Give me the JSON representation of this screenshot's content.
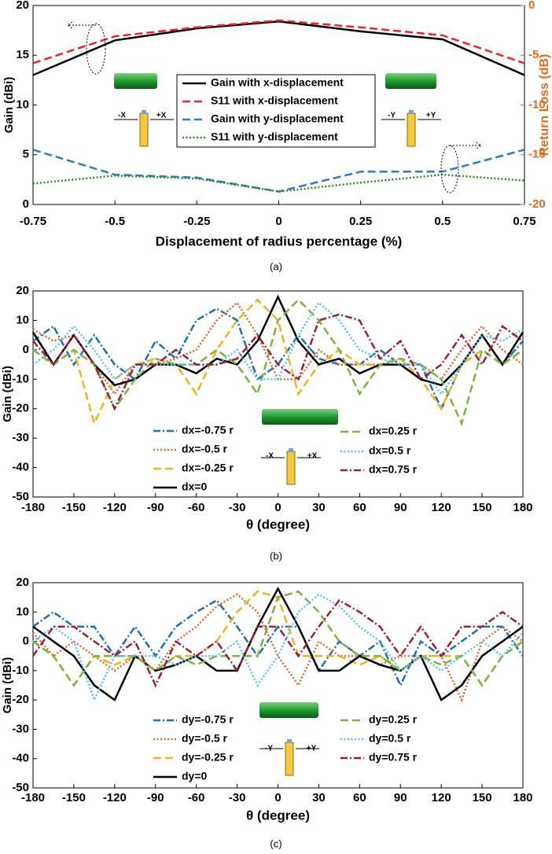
{
  "chart_data": [
    {
      "type": "line",
      "caption": "(a)",
      "x_label": "Displacement of radius percentage (%)",
      "y_label": "Gain (dBi)",
      "y2_label": "Return Loss (dB)",
      "y2_color": "#e06a1b",
      "x": [
        -0.75,
        -0.5,
        -0.25,
        0,
        0.25,
        0.5,
        0.75
      ],
      "xlim": [
        -0.75,
        0.75
      ],
      "xticks": [
        -0.75,
        -0.5,
        -0.25,
        0,
        0.25,
        0.5,
        0.75
      ],
      "ylim": [
        0,
        20
      ],
      "yticks": [
        0,
        5,
        10,
        15,
        20
      ],
      "y2lim": [
        -20,
        0
      ],
      "y2ticks": [
        -20,
        -15,
        -10,
        -5,
        0
      ],
      "annotations": [
        "-X",
        "+X",
        "-Y",
        "+Y"
      ],
      "series": [
        {
          "name": "Gain with x-displacement",
          "color": "#000000",
          "style": "solid",
          "values": [
            13,
            16.5,
            17.7,
            18.4,
            17.4,
            16.6,
            13
          ]
        },
        {
          "name": "S11 with x-displacement",
          "color": "#e8252b",
          "style": "dashed",
          "axis": "y2",
          "values": [
            -5.8,
            -3.1,
            -2.2,
            -1.5,
            -2.2,
            -3,
            -5.8
          ]
        },
        {
          "name": "Gain with y-displacement",
          "color": "#2a7cc4",
          "style": "dashed",
          "values": [
            5.5,
            3,
            2.7,
            1.3,
            3.3,
            3.3,
            5.5
          ]
        },
        {
          "name": "S11 with y-displacement",
          "color": "#2e8b22",
          "style": "dotted",
          "axis": "y2",
          "values": [
            -17.9,
            -17.1,
            -17.4,
            -18.7,
            -17.8,
            -17,
            -17.6
          ]
        }
      ]
    },
    {
      "type": "line",
      "caption": "(b)",
      "x_label": "θ (degree)",
      "y_label": "Gain (dBi)",
      "x": [
        -180,
        -165,
        -150,
        -135,
        -120,
        -105,
        -90,
        -75,
        -60,
        -45,
        -30,
        -15,
        0,
        15,
        30,
        45,
        60,
        75,
        90,
        105,
        120,
        135,
        150,
        165,
        180
      ],
      "xlim": [
        -180,
        180
      ],
      "xticks": [
        -180,
        -150,
        -120,
        -90,
        -60,
        -30,
        0,
        30,
        60,
        90,
        120,
        150,
        180
      ],
      "ylim": [
        -50,
        20
      ],
      "yticks": [
        -50,
        -40,
        -30,
        -20,
        -10,
        0,
        10,
        20
      ],
      "annotations": [
        "-X",
        "+X"
      ],
      "series": [
        {
          "name": "dx=-0.75 r",
          "color": "#1f6fb4",
          "style": "dashdot",
          "values": [
            3,
            8,
            -5,
            5,
            -5,
            -10,
            3,
            -3,
            10,
            14,
            10,
            -10,
            -5,
            5,
            -3,
            -5,
            -5,
            0,
            -5,
            -5,
            -20,
            -5,
            5,
            -5,
            3
          ]
        },
        {
          "name": "dx=-0.5 r",
          "color": "#e0662a",
          "style": "dotted",
          "values": [
            7,
            3,
            5,
            -5,
            -15,
            -5,
            -5,
            -3,
            0,
            10,
            16,
            5,
            -10,
            -10,
            0,
            -5,
            -5,
            -5,
            -5,
            -5,
            -10,
            0,
            8,
            0,
            -5
          ]
        },
        {
          "name": "dx=-0.25 r",
          "color": "#f0b323",
          "style": "dashed",
          "values": [
            0,
            -5,
            0,
            -25,
            -10,
            -5,
            -3,
            -5,
            -15,
            0,
            10,
            17,
            10,
            -15,
            -5,
            0,
            -5,
            -5,
            -3,
            -10,
            -20,
            -5,
            0,
            -5,
            0
          ]
        },
        {
          "name": "dx=0",
          "color": "#000000",
          "style": "solid",
          "values": [
            6,
            -5,
            5,
            -5,
            -12,
            -10,
            -5,
            -5,
            -8,
            -3,
            -5,
            3,
            18,
            3,
            -5,
            -3,
            -8,
            -5,
            -5,
            -10,
            -12,
            -5,
            5,
            -5,
            6
          ]
        },
        {
          "name": "dx=0.25 r",
          "color": "#7cb342",
          "style": "dashed",
          "values": [
            0,
            -5,
            0,
            -5,
            -20,
            -10,
            -3,
            -5,
            -5,
            0,
            -5,
            -15,
            10,
            17,
            10,
            0,
            -15,
            -5,
            -3,
            -5,
            -10,
            -25,
            0,
            -5,
            0
          ]
        },
        {
          "name": "dx=0.5 r",
          "color": "#4fc3f7",
          "style": "dotted",
          "values": [
            -5,
            0,
            8,
            0,
            -10,
            -5,
            -5,
            -5,
            -5,
            -5,
            0,
            -10,
            -10,
            5,
            16,
            10,
            0,
            -3,
            -5,
            -5,
            -15,
            -5,
            5,
            3,
            7
          ]
        },
        {
          "name": "dx=0.75 r",
          "color": "#9c1f3a",
          "style": "dashdot",
          "values": [
            3,
            -5,
            5,
            -5,
            -20,
            -5,
            -5,
            0,
            -5,
            -5,
            -3,
            5,
            -5,
            -10,
            10,
            12,
            10,
            -3,
            3,
            -10,
            -5,
            5,
            -5,
            8,
            3
          ]
        }
      ]
    },
    {
      "type": "line",
      "caption": "(c)",
      "x_label": "θ (degree)",
      "y_label": "Gain (dBi)",
      "x": [
        -180,
        -165,
        -150,
        -135,
        -120,
        -105,
        -90,
        -75,
        -60,
        -45,
        -30,
        -15,
        0,
        15,
        30,
        45,
        60,
        75,
        90,
        105,
        120,
        135,
        150,
        165,
        180
      ],
      "xlim": [
        -180,
        180
      ],
      "xticks": [
        -180,
        -150,
        -120,
        -90,
        -60,
        -30,
        0,
        30,
        60,
        90,
        120,
        150,
        180
      ],
      "ylim": [
        -50,
        20
      ],
      "yticks": [
        -50,
        -40,
        -30,
        -20,
        -10,
        0,
        10,
        20
      ],
      "annotations": [
        "-Y",
        "+Y"
      ],
      "series": [
        {
          "name": "dy=-0.75 r",
          "color": "#1f6fb4",
          "style": "dashdot",
          "values": [
            5,
            10,
            5,
            5,
            -5,
            5,
            -5,
            5,
            10,
            14,
            5,
            -5,
            5,
            5,
            -10,
            0,
            -5,
            0,
            -15,
            0,
            -5,
            0,
            5,
            5,
            -5
          ]
        },
        {
          "name": "dy=-0.5 r",
          "color": "#e0662a",
          "style": "dotted",
          "values": [
            3,
            -5,
            0,
            -5,
            -10,
            -5,
            -10,
            0,
            5,
            12,
            16,
            10,
            -5,
            -15,
            0,
            -5,
            -5,
            -8,
            -5,
            -5,
            -5,
            -20,
            0,
            5,
            0
          ]
        },
        {
          "name": "dy=-0.25 r",
          "color": "#f0b323",
          "style": "dashed",
          "values": [
            0,
            -5,
            -15,
            -5,
            -8,
            -5,
            -10,
            -5,
            -5,
            0,
            10,
            17,
            15,
            -5,
            -5,
            -5,
            -8,
            -5,
            -10,
            -5,
            -5,
            -5,
            -15,
            -5,
            0
          ]
        },
        {
          "name": "dy=0",
          "color": "#000000",
          "style": "solid",
          "values": [
            5,
            0,
            -5,
            -15,
            -20,
            -5,
            -10,
            -8,
            -5,
            -10,
            -10,
            5,
            18,
            5,
            -10,
            -10,
            -5,
            -8,
            -10,
            -5,
            -20,
            -15,
            -5,
            0,
            5
          ]
        },
        {
          "name": "dy=0.25 r",
          "color": "#7cb342",
          "style": "dashed",
          "values": [
            0,
            -5,
            -15,
            -5,
            -5,
            -5,
            -10,
            -5,
            -8,
            -5,
            -5,
            -5,
            15,
            17,
            10,
            0,
            -5,
            -5,
            -10,
            -5,
            -8,
            -5,
            -15,
            -5,
            0
          ]
        },
        {
          "name": "dy=0.5 r",
          "color": "#4fc3f7",
          "style": "dotted",
          "values": [
            0,
            5,
            0,
            -20,
            -5,
            -5,
            -5,
            -8,
            -5,
            -5,
            0,
            -15,
            -5,
            10,
            16,
            12,
            5,
            0,
            -10,
            -5,
            -10,
            -5,
            0,
            -5,
            3
          ]
        },
        {
          "name": "dy=0.75 r",
          "color": "#9c1f3a",
          "style": "dashdot",
          "values": [
            -5,
            5,
            5,
            0,
            -5,
            0,
            -15,
            0,
            -5,
            0,
            -10,
            5,
            5,
            -5,
            5,
            14,
            10,
            5,
            -5,
            5,
            -5,
            5,
            5,
            10,
            5
          ]
        }
      ]
    }
  ]
}
